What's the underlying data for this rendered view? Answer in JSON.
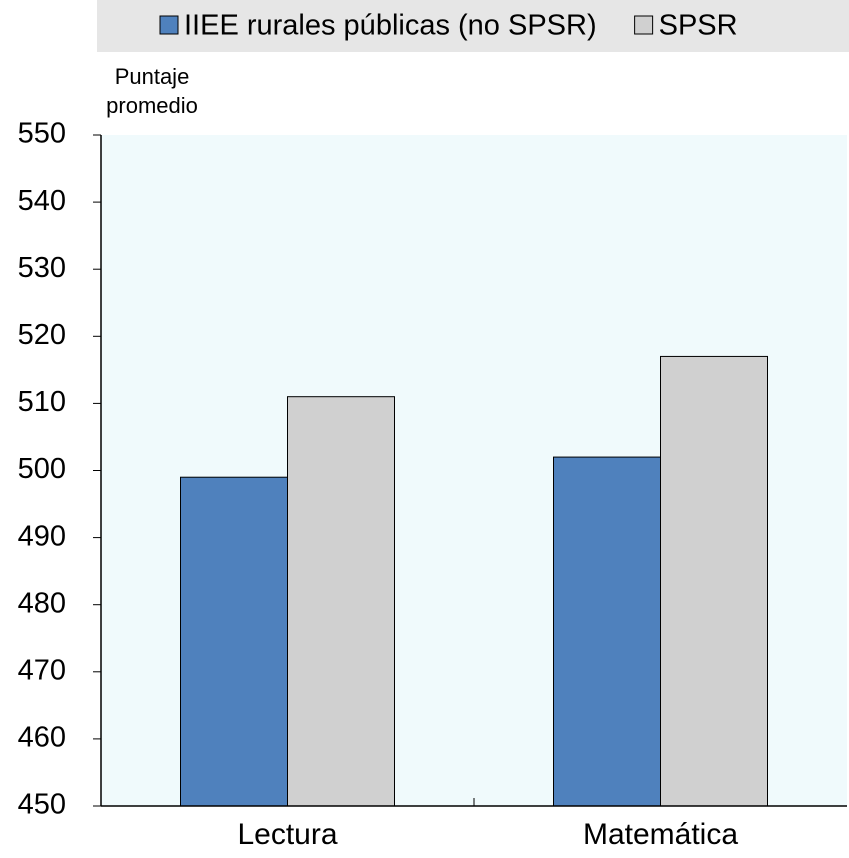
{
  "chart_data": {
    "type": "bar",
    "y_label": "Puntaje promedio",
    "categories": [
      "Lectura",
      "Matemática"
    ],
    "series": [
      {
        "name": "IIEE rurales públicas (no SPSR)",
        "color": "#4f81bd",
        "values": [
          499,
          502
        ]
      },
      {
        "name": "SPSR",
        "color": "#d0d0d0",
        "values": [
          511,
          517
        ]
      }
    ],
    "ylim": [
      450,
      550
    ],
    "yticks": [
      450,
      460,
      470,
      480,
      490,
      500,
      510,
      520,
      530,
      540,
      550
    ],
    "plot_background": "#f0fafc",
    "legend": "top"
  }
}
